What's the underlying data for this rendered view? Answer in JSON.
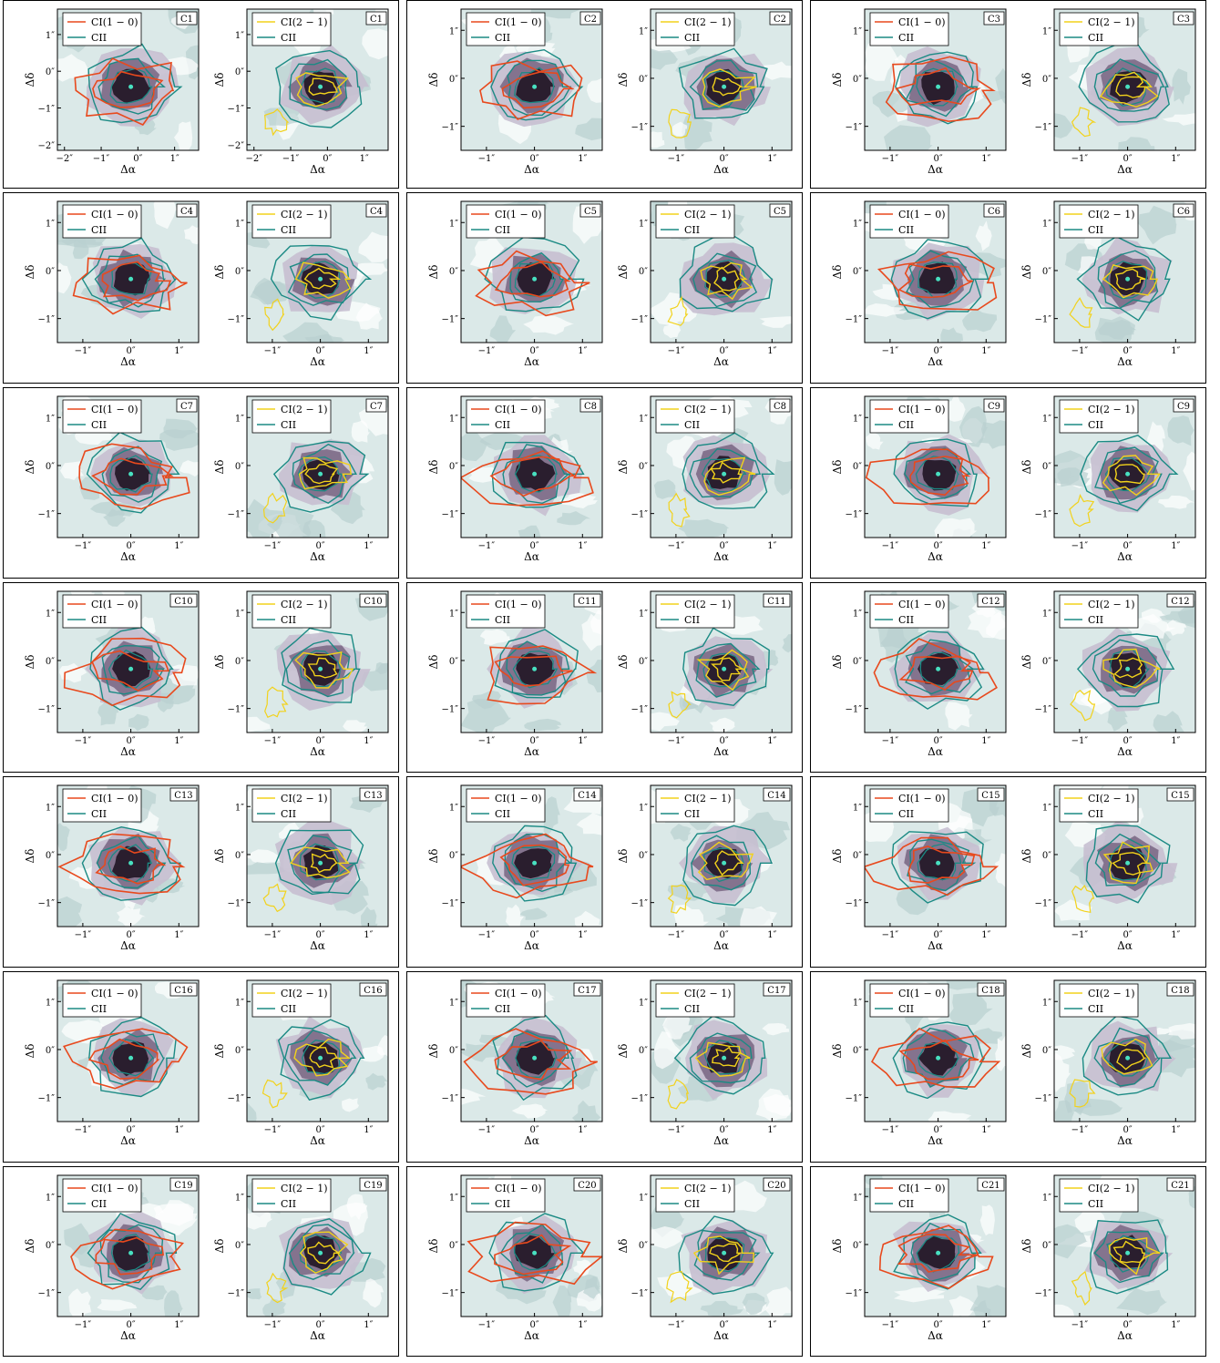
{
  "legend_left": [
    "CI(1 − 0)",
    "CII"
  ],
  "legend_right": [
    "CI(2 − 1)",
    "CII"
  ],
  "x_axis_label": "Δα",
  "y_axis_label": "Δδ",
  "tick_labels_default": [
    "−1″",
    "0″",
    "1″"
  ],
  "tick_labels_c1": [
    "−2″",
    "−1″",
    "0″",
    "1″"
  ],
  "colors": {
    "ci10": "#e8491d",
    "ci21": "#f2d21b",
    "cii": "#1b8a84",
    "marker": "#48e0c0",
    "bg": "#dbe9e8"
  },
  "objects": [
    "C1",
    "C2",
    "C3",
    "C4",
    "C5",
    "C6",
    "C7",
    "C8",
    "C9",
    "C10",
    "C11",
    "C12",
    "C13",
    "C14",
    "C15",
    "C16",
    "C17",
    "C18",
    "C19",
    "C20",
    "C21"
  ]
}
